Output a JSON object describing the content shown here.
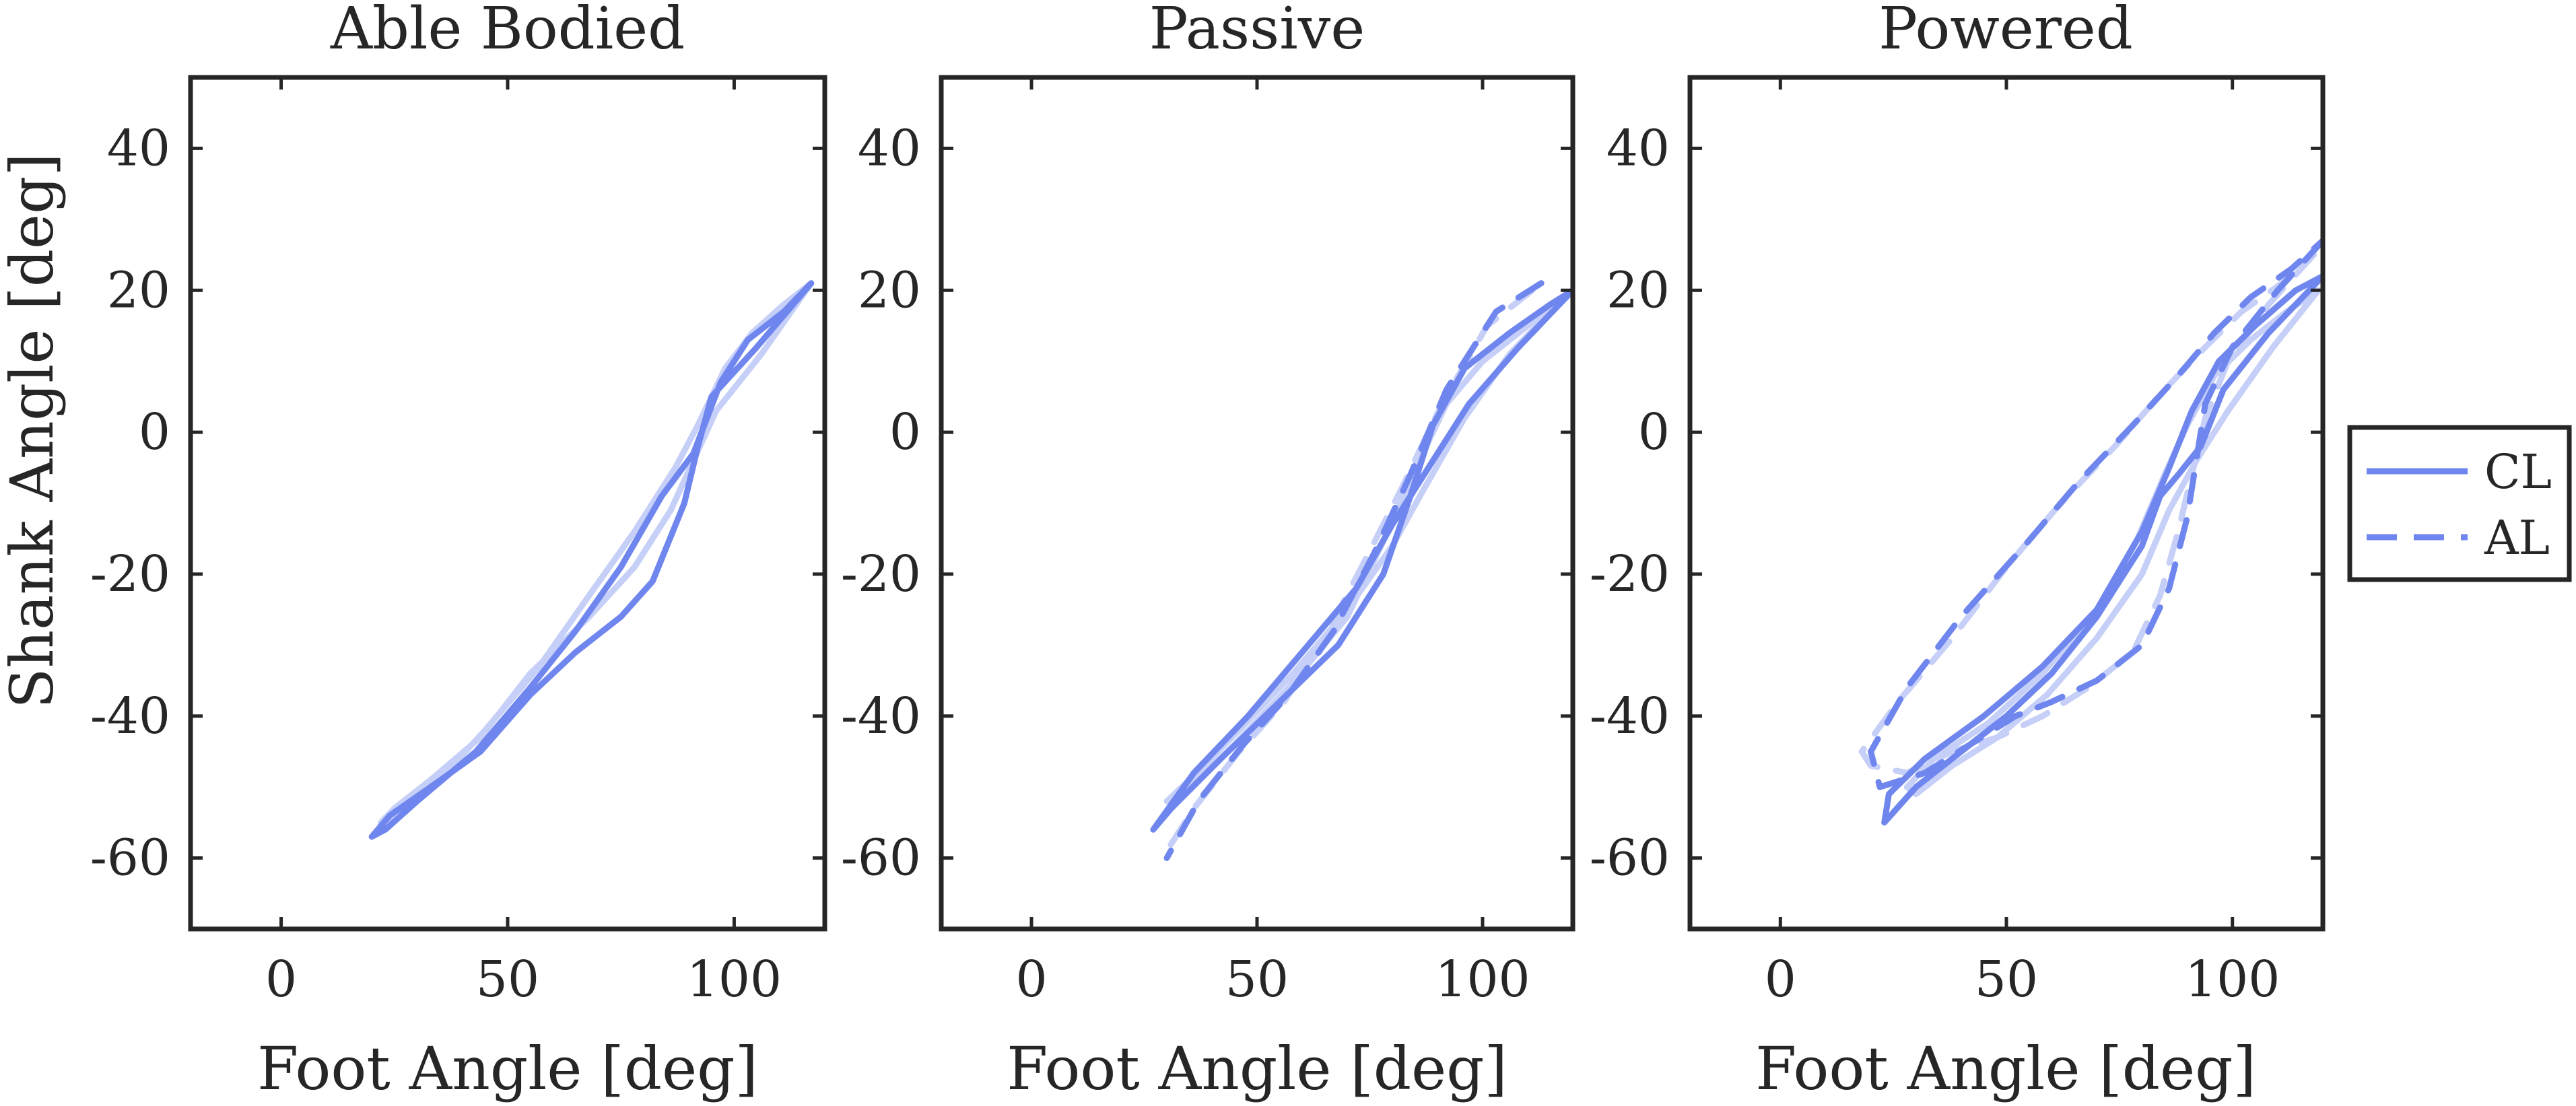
{
  "chart_data": [
    {
      "type": "line",
      "title": "Able Bodied",
      "xlabel": "Foot Angle [deg]",
      "ylabel": "Shank Angle [deg]",
      "xlim": [
        -20,
        120
      ],
      "ylim": [
        -70,
        50
      ],
      "xticks": [
        0,
        50,
        100
      ],
      "yticks": [
        40,
        20,
        0,
        -20,
        -40,
        -60
      ],
      "series": [
        {
          "name": "CL",
          "style": "solid",
          "shade": "dark",
          "x": [
            117,
            105,
            95,
            92,
            89,
            82,
            75,
            65,
            55,
            44,
            33,
            24,
            20,
            23,
            30,
            43,
            55,
            65,
            75,
            84,
            91,
            97,
            103,
            111,
            117
          ],
          "y": [
            21,
            12,
            5,
            -2,
            -10,
            -21,
            -26,
            -31,
            -37,
            -45,
            -50,
            -54,
            -57,
            -56,
            -52,
            -45,
            -36,
            -28,
            -19,
            -9,
            -3,
            7,
            13,
            17,
            21
          ]
        },
        {
          "name": "CL",
          "style": "solid",
          "shade": "light",
          "x": [
            117,
            106,
            96,
            91,
            86,
            78,
            68,
            55,
            44,
            33,
            25,
            22,
            26,
            35,
            45,
            57,
            68,
            78,
            87,
            92,
            98,
            104,
            111,
            117
          ],
          "y": [
            21,
            11,
            3,
            -4,
            -11,
            -19,
            -26,
            -34,
            -43,
            -49,
            -53,
            -55,
            -54,
            -49,
            -42,
            -33,
            -23,
            -14,
            -5,
            1,
            9,
            14,
            18,
            21
          ]
        }
      ]
    },
    {
      "type": "line",
      "title": "Passive",
      "xlabel": "Foot Angle [deg]",
      "ylabel": "",
      "xlim": [
        -20,
        120
      ],
      "ylim": [
        -70,
        50
      ],
      "xticks": [
        0,
        50,
        100
      ],
      "yticks": [
        40,
        20,
        0,
        -20,
        -40,
        -60
      ],
      "series": [
        {
          "name": "CL",
          "style": "solid",
          "shade": "dark",
          "x": [
            120,
            108,
            97,
            88,
            80,
            72,
            60,
            48,
            36,
            27,
            31,
            42,
            55,
            68,
            78,
            84,
            89,
            96,
            106,
            115,
            120
          ],
          "y": [
            20,
            12,
            4,
            -5,
            -13,
            -22,
            -31,
            -40,
            -48,
            -56,
            -53,
            -46,
            -38,
            -30,
            -20,
            -9,
            1,
            9,
            14,
            18,
            20
          ]
        },
        {
          "name": "CL",
          "style": "solid",
          "shade": "light",
          "x": [
            118,
            106,
            96,
            87,
            80,
            70,
            58,
            46,
            35,
            30,
            35,
            45,
            57,
            70,
            79,
            86,
            92,
            100,
            110,
            118
          ],
          "y": [
            19,
            11,
            2,
            -8,
            -16,
            -25,
            -34,
            -42,
            -49,
            -52,
            -50,
            -44,
            -36,
            -26,
            -14,
            -4,
            4,
            10,
            15,
            19
          ]
        },
        {
          "name": "AL",
          "style": "dashed",
          "shade": "dark",
          "x": [
            113,
            103,
            92,
            84,
            76,
            67,
            57,
            47,
            37,
            30
          ],
          "y": [
            21,
            17,
            6,
            -6,
            -17,
            -28,
            -37,
            -44,
            -52,
            -60
          ]
        },
        {
          "name": "AL",
          "style": "dashed",
          "shade": "light",
          "x": [
            111,
            101,
            91,
            82,
            74,
            65,
            56,
            46,
            36,
            30
          ],
          "y": [
            20,
            15,
            4,
            -8,
            -18,
            -29,
            -38,
            -45,
            -53,
            -59
          ]
        }
      ]
    },
    {
      "type": "line",
      "title": "Powered",
      "xlabel": "Foot Angle [deg]",
      "ylabel": "",
      "xlim": [
        -20,
        120
      ],
      "ylim": [
        -70,
        50
      ],
      "xticks": [
        0,
        50,
        100
      ],
      "yticks": [
        40,
        20,
        0,
        -20,
        -40,
        -60
      ],
      "series": [
        {
          "name": "CL",
          "style": "solid",
          "shade": "dark",
          "x": [
            120,
            108,
            98,
            93,
            88,
            84,
            80,
            70,
            60,
            50,
            40,
            30,
            23,
            24,
            32,
            45,
            58,
            70,
            80,
            86,
            91,
            97,
            105,
            114,
            120
          ],
          "y": [
            22,
            14,
            6,
            -2,
            -6,
            -9,
            -16,
            -26,
            -34,
            -40,
            -45,
            -50,
            -55,
            -51,
            -46,
            -40,
            -33,
            -25,
            -14,
            -5,
            3,
            10,
            15,
            20,
            22
          ]
        },
        {
          "name": "CL",
          "style": "solid",
          "shade": "light",
          "x": [
            119,
            109,
            99,
            92,
            86,
            80,
            70,
            59,
            48,
            38,
            30,
            28,
            34,
            46,
            58,
            70,
            79,
            85,
            90,
            96,
            104,
            112,
            119
          ],
          "y": [
            20,
            12,
            3,
            -4,
            -11,
            -20,
            -29,
            -37,
            -43,
            -47,
            -51,
            -50,
            -46,
            -41,
            -34,
            -25,
            -15,
            -6,
            1,
            8,
            13,
            17,
            20
          ]
        },
        {
          "name": "AL",
          "style": "dashed",
          "shade": "dark",
          "x": [
            120,
            110,
            100,
            94,
            92,
            90,
            86,
            80,
            70,
            60,
            52,
            42,
            32,
            22,
            20,
            28,
            40,
            54,
            66,
            78,
            88,
            96,
            104,
            113,
            120
          ],
          "y": [
            27,
            20,
            12,
            4,
            -4,
            -12,
            -22,
            -30,
            -35,
            -38,
            -40,
            -44,
            -48,
            -50,
            -45,
            -36,
            -26,
            -16,
            -7,
            1,
            8,
            14,
            19,
            23,
            27
          ]
        },
        {
          "name": "AL",
          "style": "dashed",
          "shade": "light",
          "x": [
            118,
            108,
            99,
            94,
            91,
            88,
            84,
            78,
            68,
            58,
            48,
            38,
            28,
            20,
            18,
            26,
            38,
            50,
            62,
            74,
            85,
            94,
            102,
            111,
            118
          ],
          "y": [
            25,
            18,
            10,
            2,
            -6,
            -14,
            -23,
            -31,
            -36,
            -40,
            -43,
            -45,
            -48,
            -47,
            -45,
            -38,
            -29,
            -19,
            -10,
            -2,
            6,
            12,
            17,
            21,
            25
          ]
        }
      ]
    }
  ],
  "legend": {
    "placement": "right",
    "entries": [
      {
        "label": "CL",
        "style": "solid"
      },
      {
        "label": "AL",
        "style": "dashed"
      }
    ]
  },
  "colors": {
    "dark": "#6f86ee",
    "light": "#c5cff7",
    "axis": "#262626"
  }
}
